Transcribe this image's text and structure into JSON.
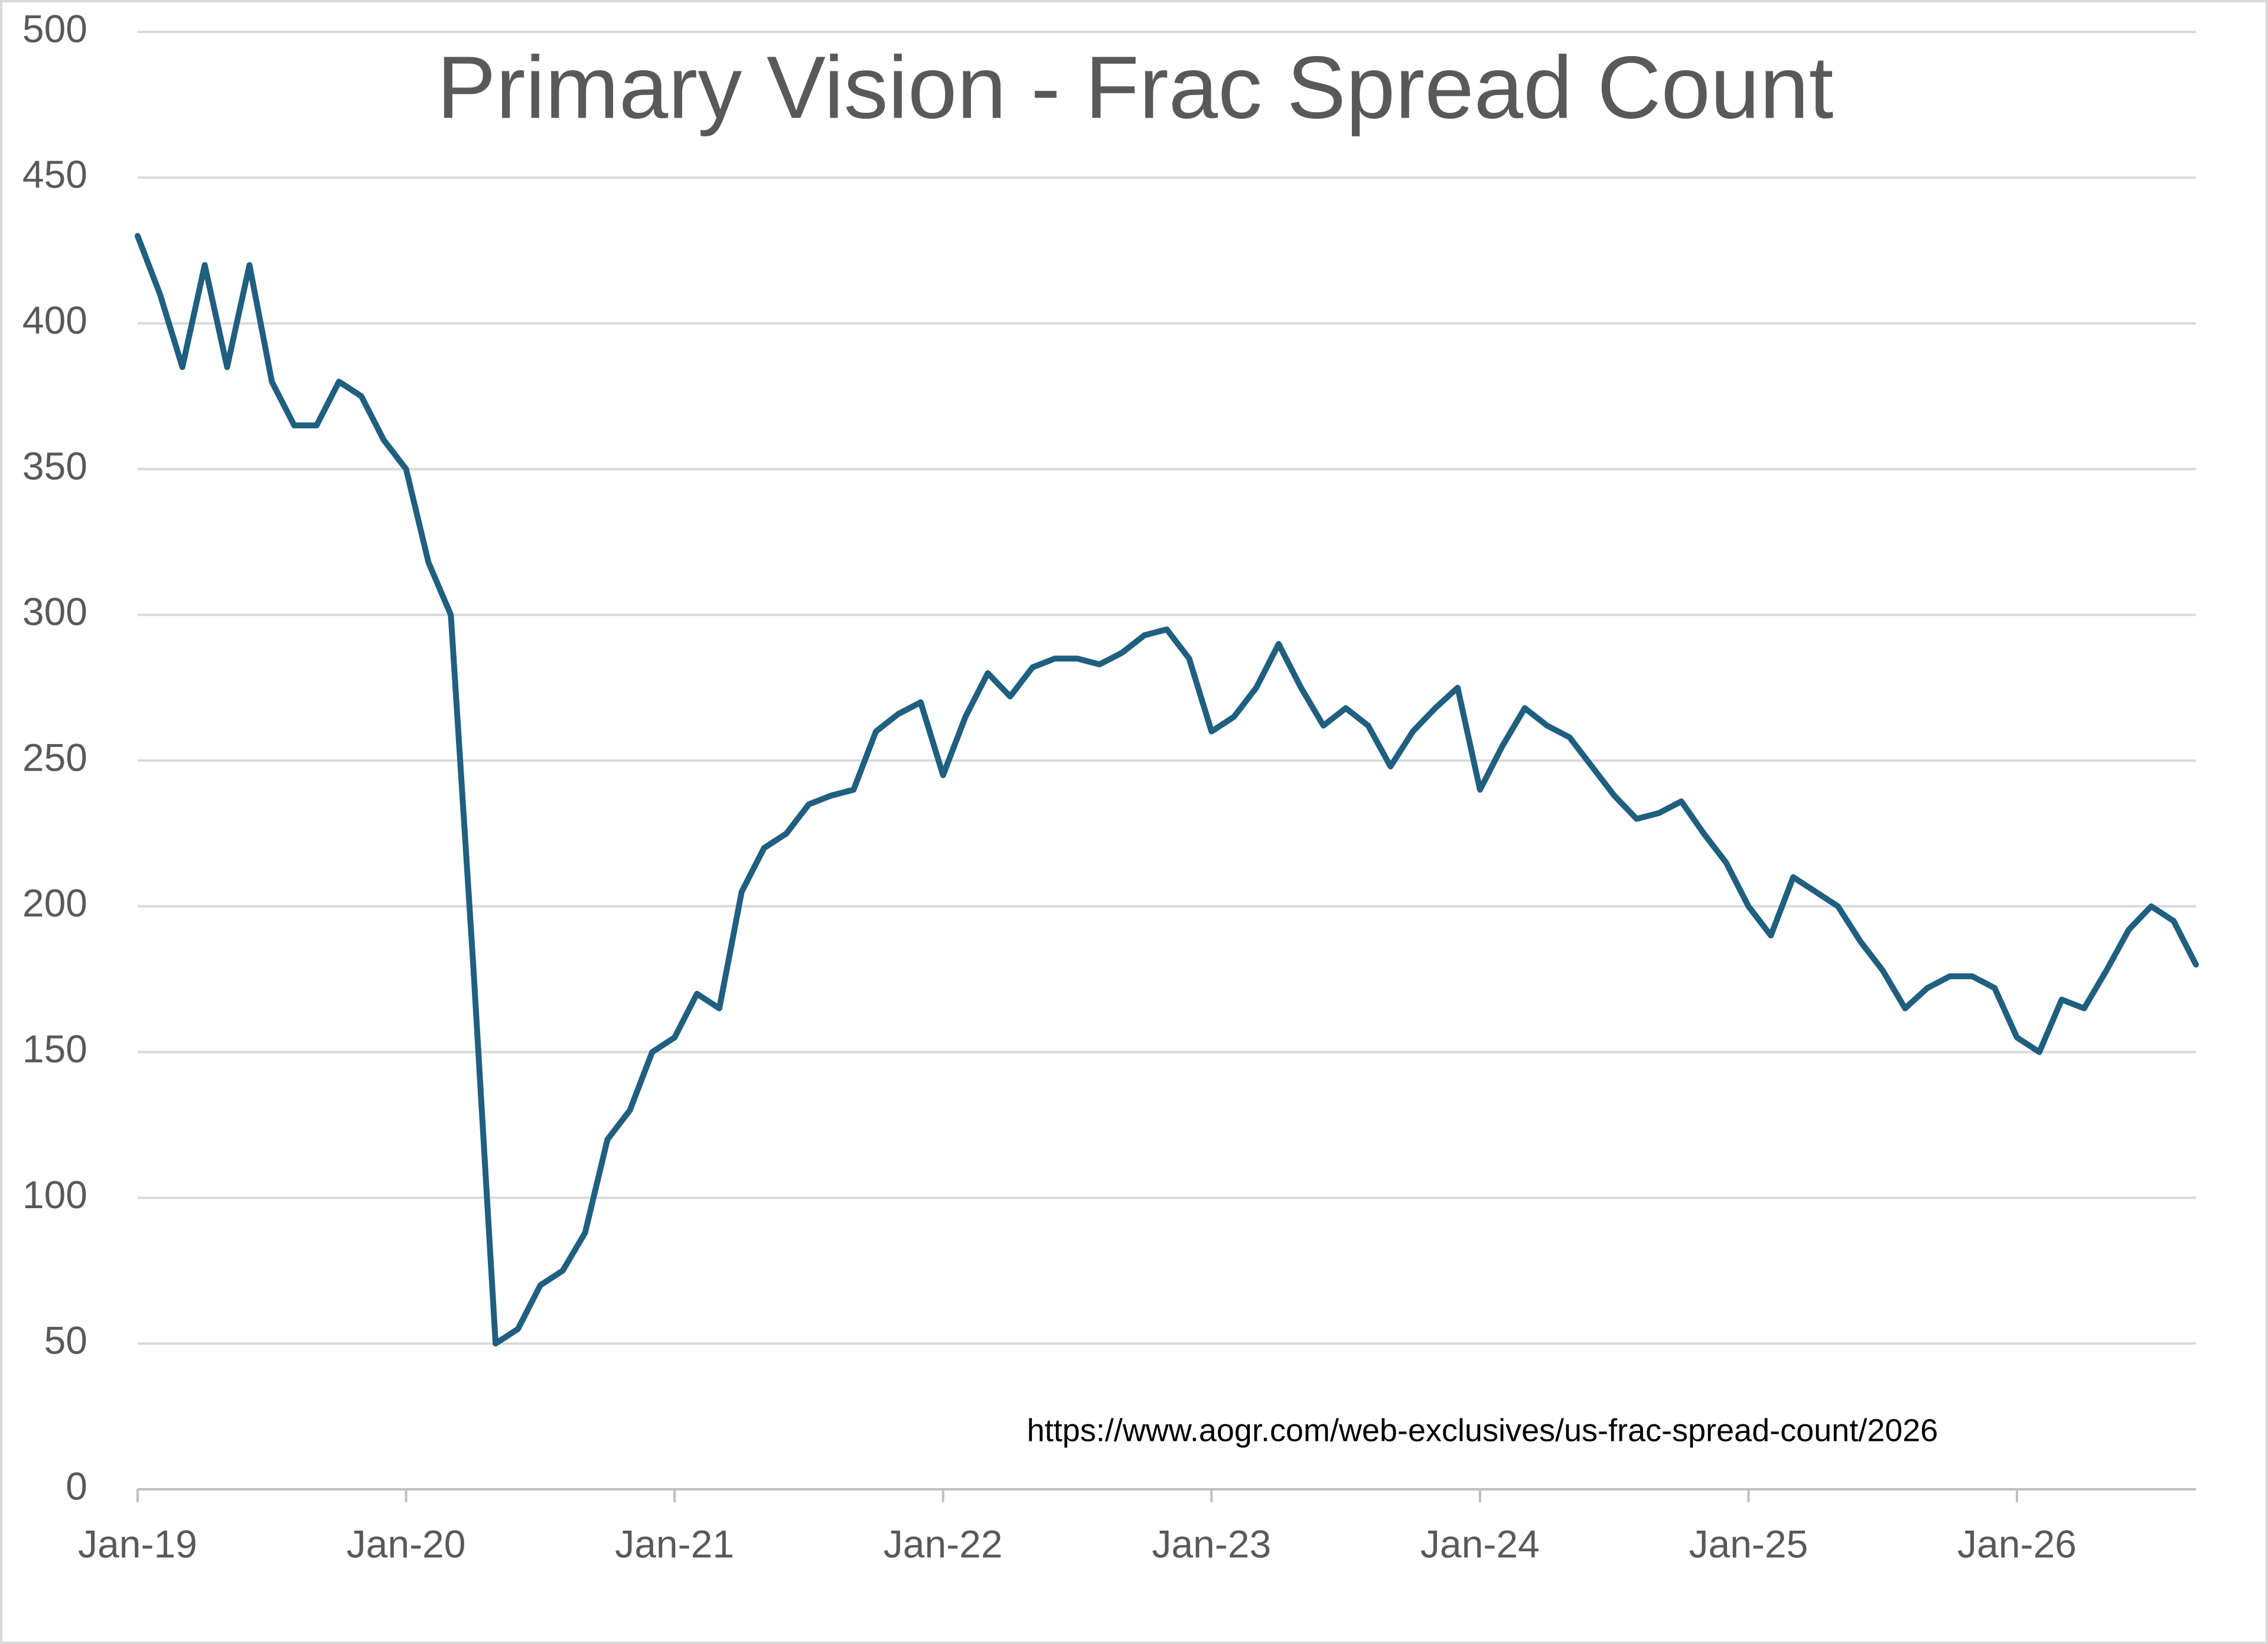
{
  "chart_data": {
    "type": "line",
    "title": "Primary Vision - Frac Spread Count",
    "annotation": "https://www.aogr.com/web-exclusives/us-frac-spread-count/2026",
    "x": [
      "2019-01",
      "2019-02",
      "2019-03",
      "2019-04",
      "2019-05",
      "2019-06",
      "2019-07",
      "2019-08",
      "2019-09",
      "2019-10",
      "2019-11",
      "2019-12",
      "2020-01",
      "2020-02",
      "2020-03",
      "2020-04",
      "2020-05",
      "2020-06",
      "2020-07",
      "2020-08",
      "2020-09",
      "2020-10",
      "2020-11",
      "2020-12",
      "2021-01",
      "2021-02",
      "2021-03",
      "2021-04",
      "2021-05",
      "2021-06",
      "2021-07",
      "2021-08",
      "2021-09",
      "2021-10",
      "2021-11",
      "2021-12",
      "2022-01",
      "2022-02",
      "2022-03",
      "2022-04",
      "2022-05",
      "2022-06",
      "2022-07",
      "2022-08",
      "2022-09",
      "2022-10",
      "2022-11",
      "2022-12",
      "2023-01",
      "2023-02",
      "2023-03",
      "2023-04",
      "2023-05",
      "2023-06",
      "2023-07",
      "2023-08",
      "2023-09",
      "2023-10",
      "2023-11",
      "2023-12",
      "2024-01",
      "2024-02",
      "2024-03",
      "2024-04",
      "2024-05",
      "2024-06",
      "2024-07",
      "2024-08",
      "2024-09",
      "2024-10",
      "2024-11",
      "2024-12",
      "2025-01",
      "2025-02",
      "2025-03",
      "2025-04",
      "2025-05",
      "2025-06",
      "2025-07",
      "2025-08",
      "2025-09",
      "2025-10",
      "2025-11",
      "2025-12",
      "2026-01",
      "2026-02",
      "2026-03",
      "2026-04",
      "2026-05",
      "2026-06",
      "2026-07",
      "2026-08",
      "2026-09"
    ],
    "series": [
      {
        "name": "Frac Spread Count",
        "color": "#1f5f80",
        "values": [
          430,
          410,
          385,
          420,
          385,
          420,
          380,
          365,
          365,
          380,
          375,
          360,
          350,
          318,
          300,
          180,
          50,
          55,
          70,
          75,
          88,
          120,
          130,
          150,
          155,
          170,
          165,
          205,
          220,
          225,
          235,
          238,
          240,
          260,
          266,
          270,
          245,
          265,
          280,
          272,
          282,
          285,
          285,
          283,
          287,
          293,
          295,
          285,
          260,
          265,
          275,
          290,
          275,
          262,
          268,
          262,
          248,
          260,
          268,
          275,
          240,
          255,
          268,
          262,
          258,
          248,
          238,
          230,
          232,
          236,
          225,
          215,
          200,
          190,
          210,
          205,
          200,
          188,
          178,
          165,
          172,
          176,
          176,
          172,
          155,
          150,
          168,
          165,
          178,
          192,
          200,
          195,
          180
        ]
      }
    ],
    "xlim": [
      "2019-01",
      "2026-09"
    ],
    "xticks": [
      {
        "value": "2019-01",
        "label": "Jan-19"
      },
      {
        "value": "2020-01",
        "label": "Jan-20"
      },
      {
        "value": "2021-01",
        "label": "Jan-21"
      },
      {
        "value": "2022-01",
        "label": "Jan-22"
      },
      {
        "value": "2023-01",
        "label": "Jan-23"
      },
      {
        "value": "2024-01",
        "label": "Jan-24"
      },
      {
        "value": "2025-01",
        "label": "Jan-25"
      },
      {
        "value": "2026-01",
        "label": "Jan-26"
      }
    ],
    "ylim": [
      0,
      500
    ],
    "yticks": [
      0,
      50,
      100,
      150,
      200,
      250,
      300,
      350,
      400,
      450,
      500
    ],
    "grid": true
  }
}
